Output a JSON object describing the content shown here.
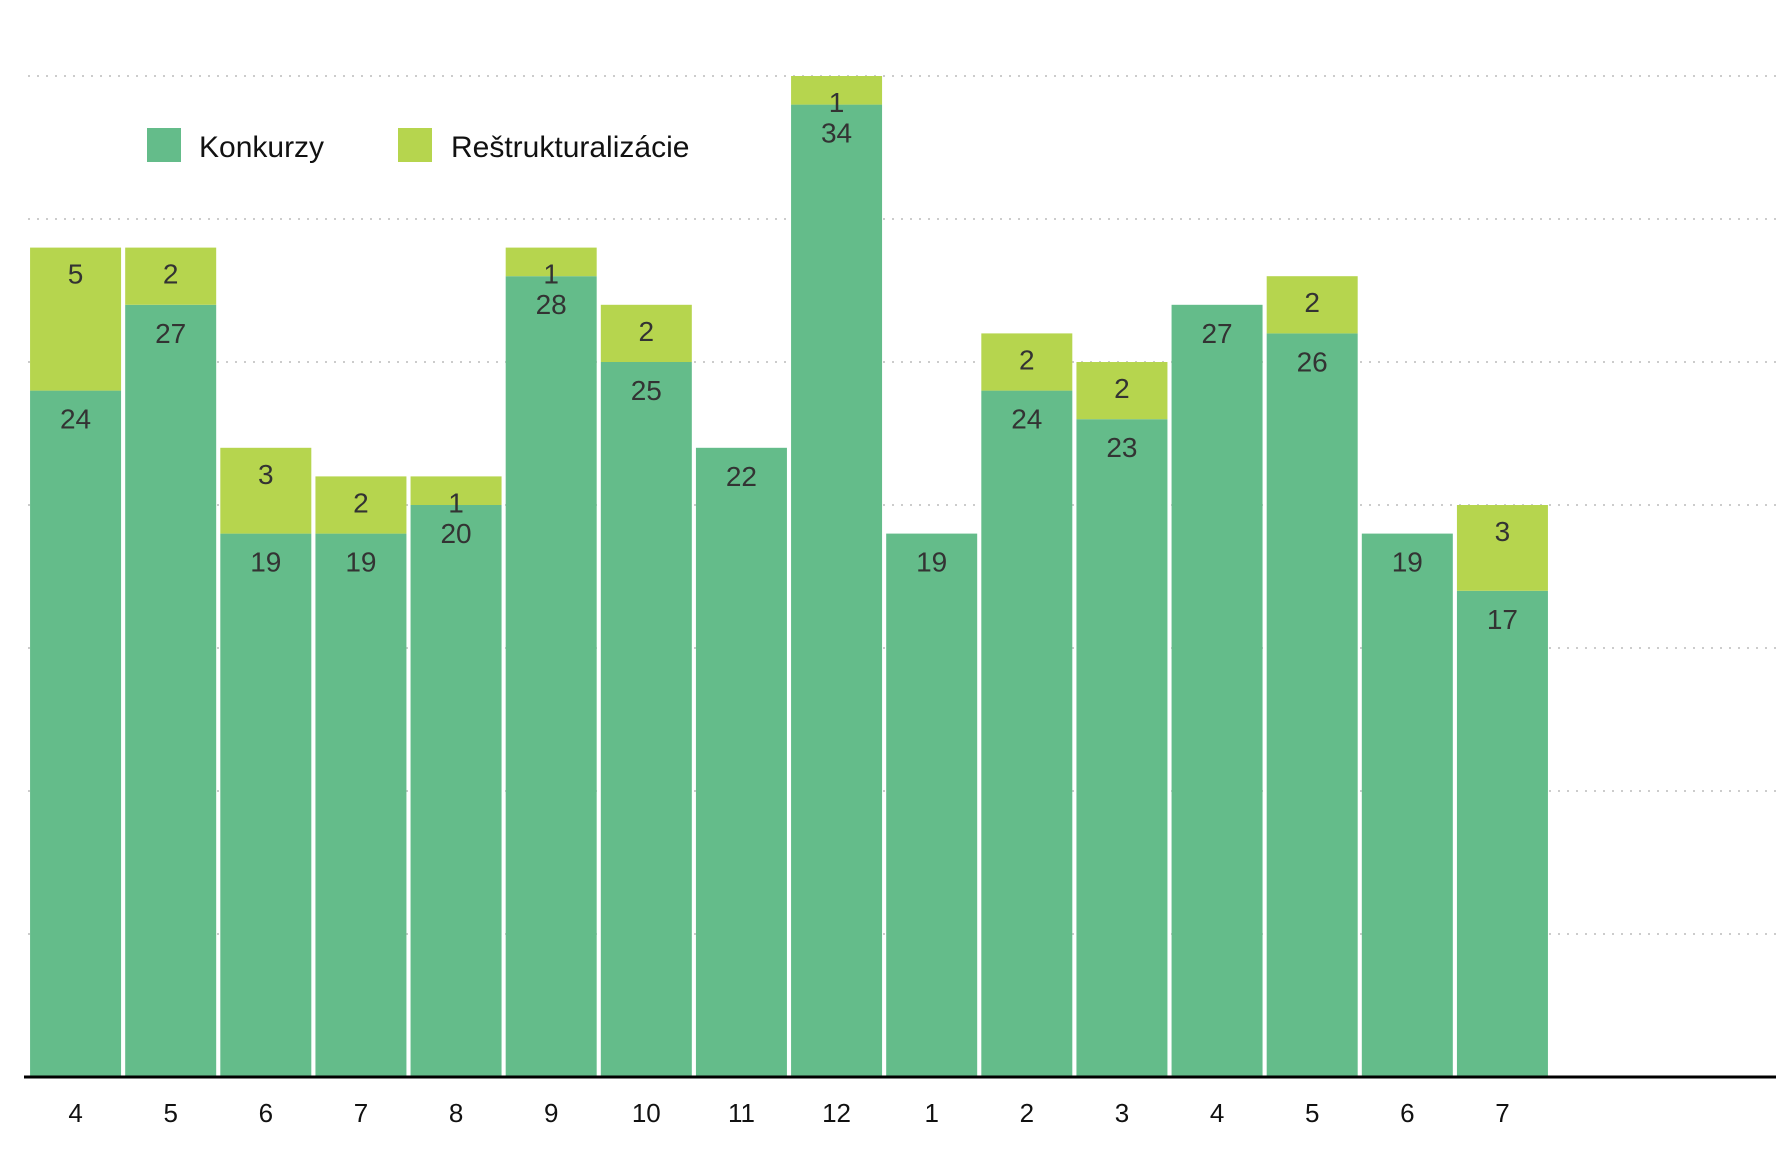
{
  "colors": {
    "konkurzy": "#64bc8a",
    "restrukturalizacie": "#b6d54e",
    "grid": "#cccccc",
    "axis": "#000000"
  },
  "legend": {
    "items": [
      {
        "label": "Konkurzy",
        "color": "#64bc8a"
      },
      {
        "label": "Reštrukturalizácie",
        "color": "#b6d54e"
      }
    ]
  },
  "chart_data": {
    "type": "bar",
    "stacked": true,
    "categories": [
      "4",
      "5",
      "6",
      "7",
      "8",
      "9",
      "10",
      "11",
      "12",
      "1",
      "2",
      "3",
      "4",
      "5",
      "6",
      "7"
    ],
    "series": [
      {
        "name": "Konkurzy",
        "values": [
          24,
          27,
          19,
          19,
          20,
          28,
          25,
          22,
          34,
          19,
          24,
          23,
          27,
          26,
          19,
          17
        ]
      },
      {
        "name": "Reštrukturalizácie",
        "values": [
          5,
          2,
          3,
          2,
          1,
          1,
          2,
          0,
          1,
          0,
          2,
          2,
          0,
          2,
          0,
          3
        ]
      }
    ],
    "title": "",
    "xlabel": "",
    "ylabel": "",
    "ylim": [
      0,
      35
    ],
    "grid": true,
    "legend_position": "top-left"
  }
}
